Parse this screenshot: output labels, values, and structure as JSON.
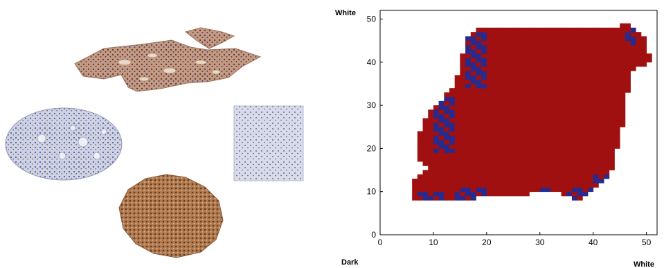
{
  "left_panel": {
    "samples": [
      {
        "name": "tissue-section-top",
        "stain": "brown-blue"
      },
      {
        "name": "tissue-section-left-oval",
        "stain": "blue-brown"
      },
      {
        "name": "tissue-square-blue",
        "stain": "blue"
      },
      {
        "name": "tissue-section-bottom-brown",
        "stain": "brown"
      }
    ]
  },
  "chart_data": {
    "type": "heatmap",
    "title": "",
    "xlabel": "",
    "ylabel": "",
    "xlim": [
      0,
      52
    ],
    "ylim": [
      0,
      52
    ],
    "x_ticks": [
      0,
      10,
      20,
      30,
      40,
      50
    ],
    "y_ticks": [
      0,
      10,
      20,
      30,
      40,
      50
    ],
    "corner_labels": {
      "y_axis_top": "White",
      "x_axis_left": "Dark",
      "x_axis_right": "White"
    },
    "colors": {
      "inner": "#a01010",
      "edge": "#2a2a8c"
    },
    "region_outline": [
      [
        6,
        8
      ],
      [
        13,
        8
      ],
      [
        33,
        10
      ],
      [
        37,
        8
      ],
      [
        43,
        13
      ],
      [
        46,
        27
      ],
      [
        47,
        38
      ],
      [
        51,
        40
      ],
      [
        50,
        45
      ],
      [
        47,
        49
      ],
      [
        44,
        48
      ],
      [
        18,
        48
      ],
      [
        16,
        45
      ],
      [
        14,
        34
      ],
      [
        12,
        32
      ],
      [
        9,
        28
      ],
      [
        7,
        23
      ],
      [
        7,
        18
      ],
      [
        9,
        15
      ],
      [
        6,
        12
      ]
    ],
    "edge_patches": [
      {
        "x": [
          16,
          20
        ],
        "y": [
          34,
          47
        ]
      },
      {
        "x": [
          10,
          14
        ],
        "y": [
          19,
          32
        ]
      },
      {
        "x": [
          7,
          12
        ],
        "y": [
          7,
          10
        ]
      },
      {
        "x": [
          14,
          20
        ],
        "y": [
          8,
          11
        ]
      },
      {
        "x": [
          29,
          33
        ],
        "y": [
          8,
          11
        ]
      },
      {
        "x": [
          35,
          40
        ],
        "y": [
          8,
          11
        ]
      },
      {
        "x": [
          40,
          44
        ],
        "y": [
          11,
          14
        ]
      },
      {
        "x": [
          46,
          48
        ],
        "y": [
          44,
          48
        ]
      }
    ]
  }
}
